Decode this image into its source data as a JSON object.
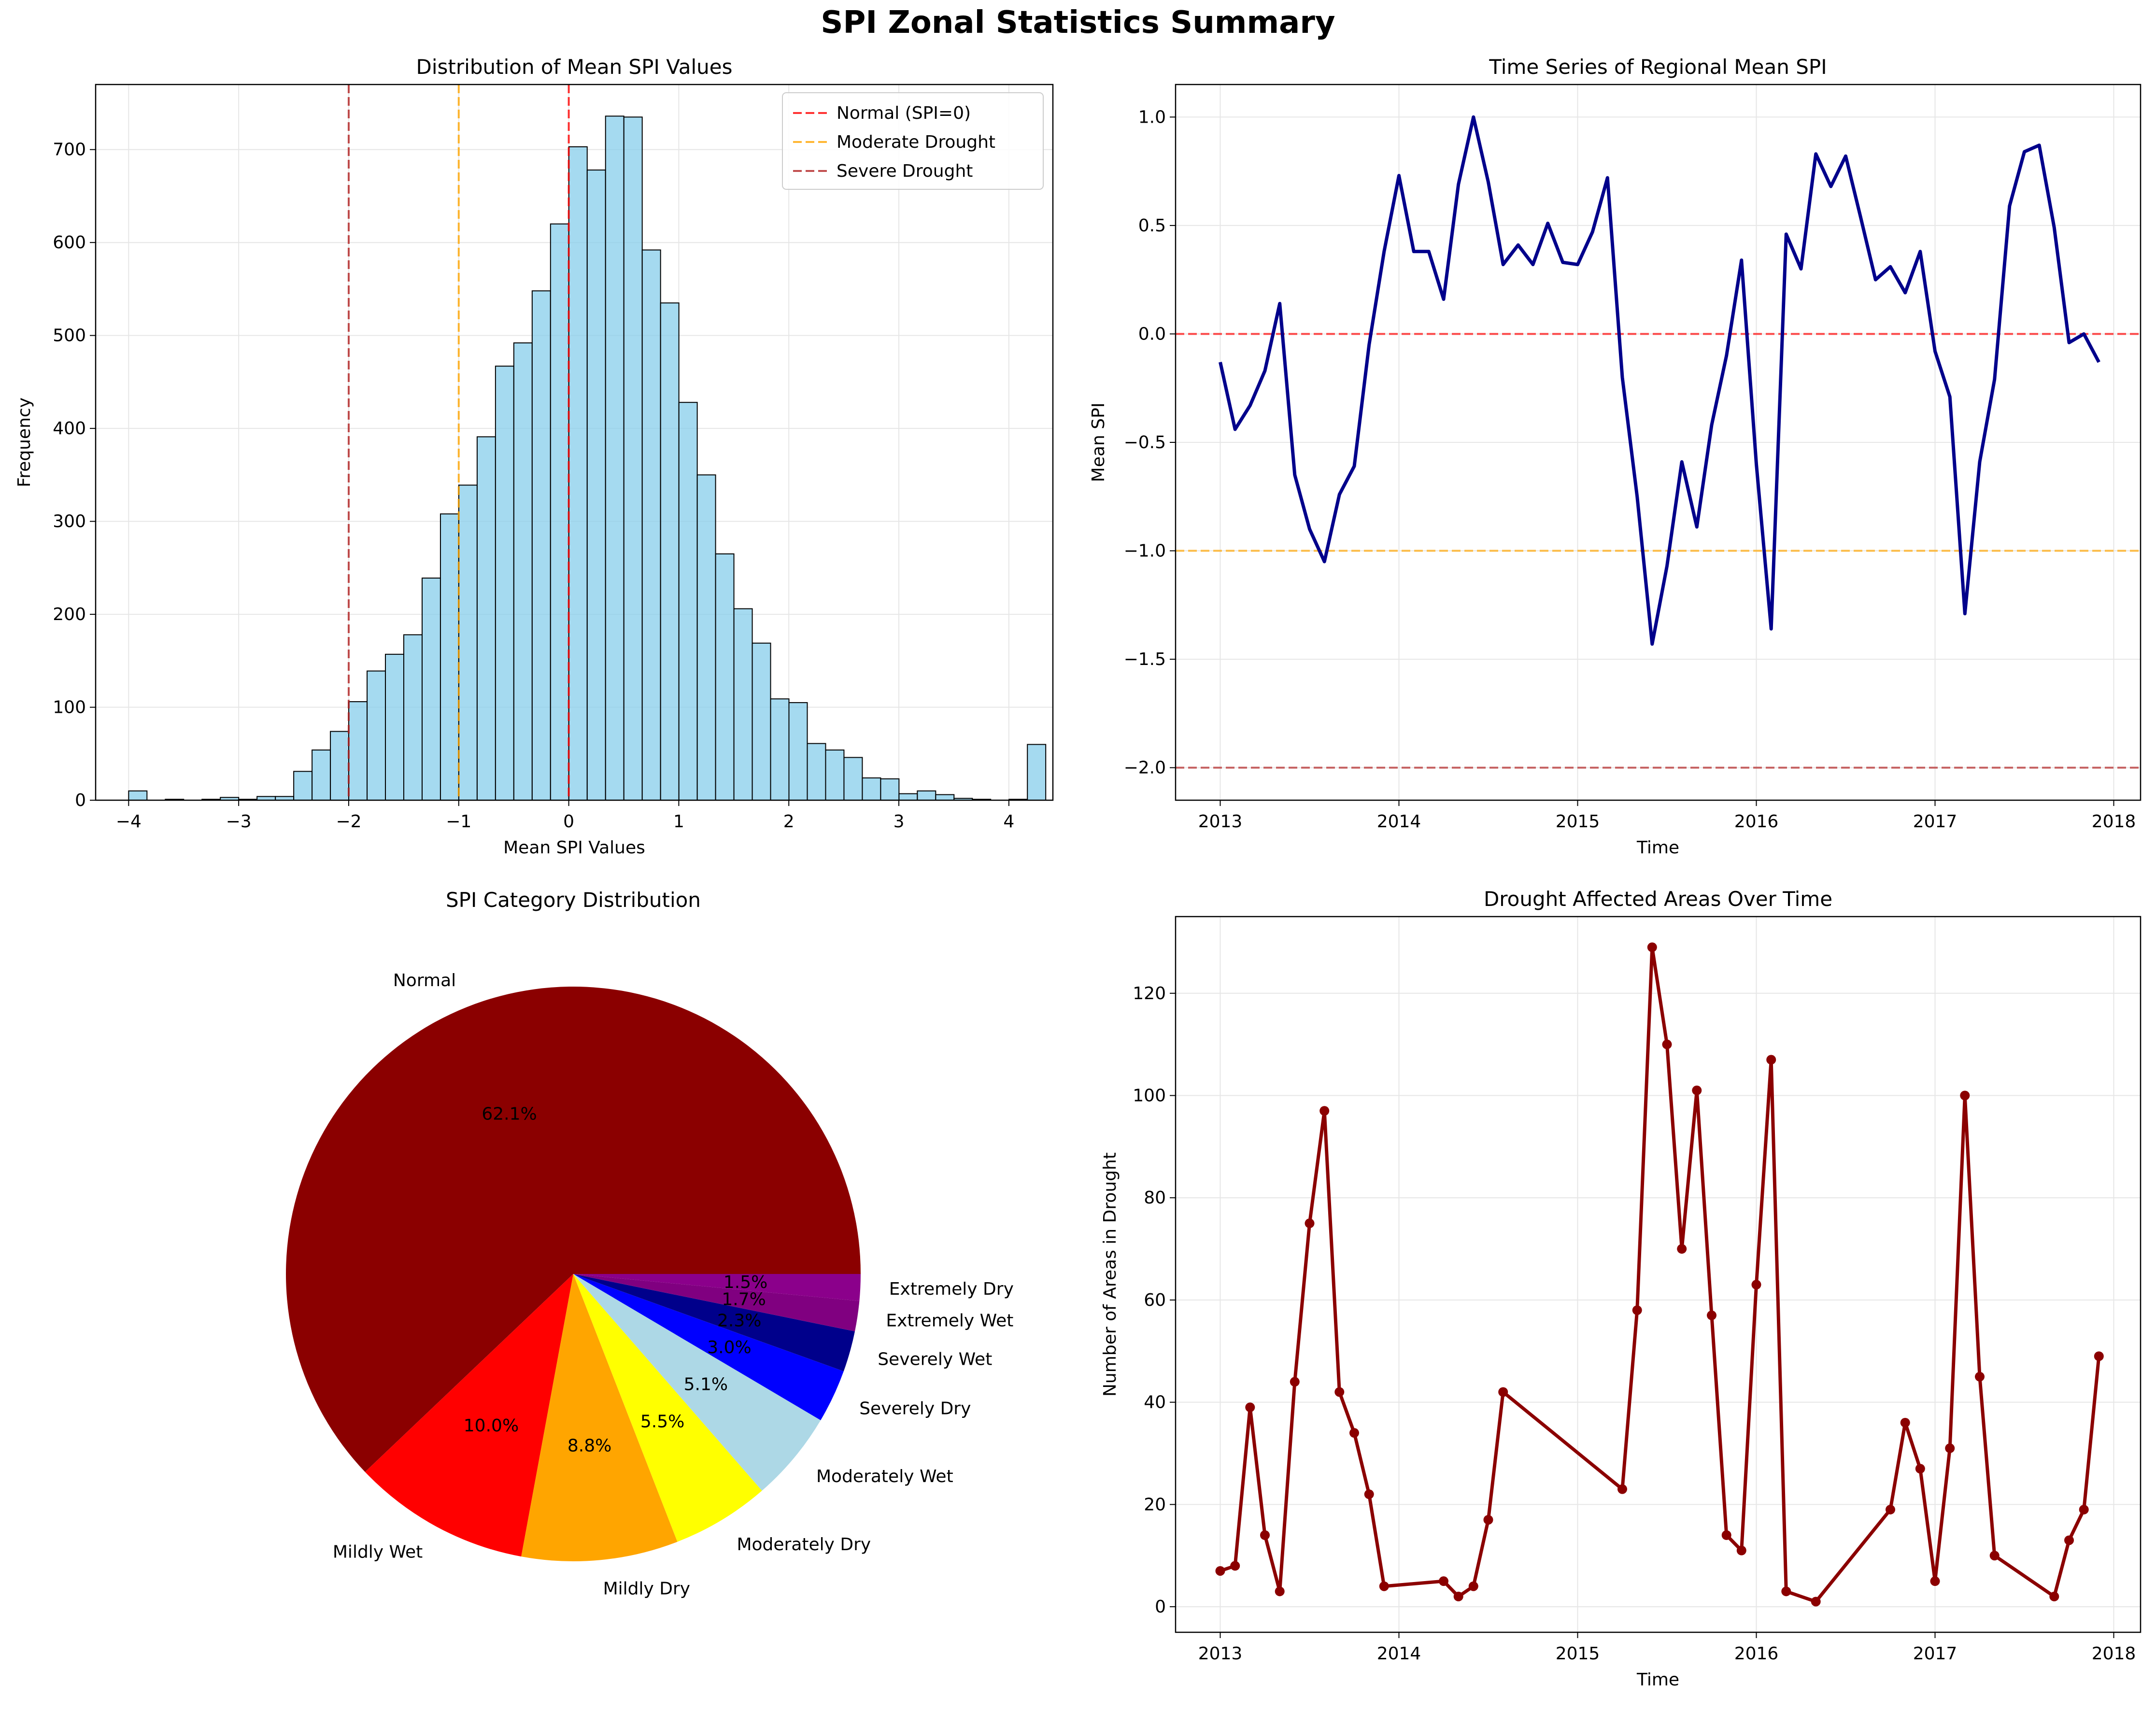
{
  "figure_title": "SPI Zonal Statistics Summary",
  "colors": {
    "hist_fill": "#87ceeb",
    "line_blue": "#00008b",
    "drought_line": "#8b0000",
    "normal": "#ff0000",
    "moderate": "#ffa500",
    "severe": "#b22222"
  },
  "chart_data": [
    {
      "type": "bar",
      "subtype": "histogram",
      "title": "Distribution of Mean SPI Values",
      "xlabel": "Mean SPI Values",
      "ylabel": "Frequency",
      "xlim": [
        -4.3,
        4.4
      ],
      "ylim": [
        0,
        770
      ],
      "xticks": [
        -4,
        -3,
        -2,
        -1,
        0,
        1,
        2,
        3,
        4
      ],
      "yticks": [
        0,
        100,
        200,
        300,
        400,
        500,
        600,
        700
      ],
      "bin_start": -4.0,
      "bin_width": 0.1667,
      "counts": [
        10,
        0,
        1,
        0,
        1,
        3,
        1,
        4,
        4,
        31,
        54,
        74,
        106,
        139,
        157,
        178,
        239,
        308,
        339,
        391,
        467,
        492,
        548,
        620,
        703,
        678,
        736,
        735,
        592,
        535,
        428,
        350,
        265,
        206,
        169,
        109,
        105,
        61,
        54,
        46,
        24,
        23,
        7,
        10,
        6,
        2,
        1,
        0,
        1,
        60
      ],
      "grid": true,
      "legend_position": "top-right",
      "reference_lines": [
        {
          "x": 0,
          "name": "Normal (SPI=0)",
          "color": "#ff0000"
        },
        {
          "x": -1,
          "name": "Moderate Drought",
          "color": "#ffa500"
        },
        {
          "x": -2,
          "name": "Severe Drought",
          "color": "#b22222"
        }
      ]
    },
    {
      "type": "line",
      "title": "Time Series of Regional Mean SPI",
      "xlabel": "Time",
      "ylabel": "Mean SPI",
      "xlim": [
        2012.75,
        2018.15
      ],
      "ylim": [
        -2.15,
        1.15
      ],
      "xticks": [
        2013,
        2014,
        2015,
        2016,
        2017,
        2018
      ],
      "yticks": [
        -2.0,
        -1.5,
        -1.0,
        -0.5,
        0.0,
        0.5,
        1.0
      ],
      "grid": true,
      "reference_lines": [
        {
          "y": 0,
          "color": "#ff0000"
        },
        {
          "y": -1,
          "color": "#ffa500"
        },
        {
          "y": -2,
          "color": "#b22222"
        }
      ],
      "x": [
        2013.0,
        2013.083,
        2013.167,
        2013.25,
        2013.333,
        2013.417,
        2013.5,
        2013.583,
        2013.667,
        2013.75,
        2013.833,
        2013.917,
        2014.0,
        2014.083,
        2014.167,
        2014.25,
        2014.333,
        2014.417,
        2014.5,
        2014.583,
        2014.667,
        2014.75,
        2014.833,
        2014.917,
        2015.0,
        2015.083,
        2015.167,
        2015.25,
        2015.333,
        2015.417,
        2015.5,
        2015.583,
        2015.667,
        2015.75,
        2015.833,
        2015.917,
        2016.0,
        2016.083,
        2016.167,
        2016.25,
        2016.333,
        2016.417,
        2016.5,
        2016.583,
        2016.667,
        2016.75,
        2016.833,
        2016.917,
        2017.0,
        2017.083,
        2017.167,
        2017.25,
        2017.333,
        2017.417,
        2017.5,
        2017.583,
        2017.667,
        2017.75,
        2017.833,
        2017.917
      ],
      "values": [
        -0.13,
        -0.44,
        -0.33,
        -0.17,
        0.14,
        -0.65,
        -0.9,
        -1.05,
        -0.74,
        -0.61,
        -0.05,
        0.38,
        0.73,
        0.38,
        0.38,
        0.16,
        0.69,
        1.0,
        0.7,
        0.32,
        0.41,
        0.32,
        0.51,
        0.33,
        0.32,
        0.47,
        0.72,
        -0.2,
        -0.75,
        -1.43,
        -1.07,
        -0.59,
        -0.89,
        -0.42,
        -0.1,
        0.34,
        -0.6,
        -1.36,
        0.46,
        0.3,
        0.83,
        0.68,
        0.82,
        0.54,
        0.25,
        0.31,
        0.19,
        0.38,
        -0.08,
        -0.29,
        -1.29,
        -0.59,
        -0.21,
        0.59,
        0.84,
        0.87,
        0.49,
        -0.04,
        0.0,
        -0.13
      ]
    },
    {
      "type": "pie",
      "title": "SPI Category Distribution",
      "slices": [
        {
          "label": "Normal",
          "value": 62.1,
          "pct": "62.1%",
          "color": "#8b0000"
        },
        {
          "label": "Mildly Wet",
          "value": 10.0,
          "pct": "10.0%",
          "color": "#ff0000"
        },
        {
          "label": "Mildly Dry",
          "value": 8.8,
          "pct": "8.8%",
          "color": "#ffa500"
        },
        {
          "label": "Moderately Dry",
          "value": 5.5,
          "pct": "5.5%",
          "color": "#ffff00"
        },
        {
          "label": "Moderately Wet",
          "value": 5.1,
          "pct": "5.1%",
          "color": "#add8e6"
        },
        {
          "label": "Severely Dry",
          "value": 3.0,
          "pct": "3.0%",
          "color": "#0000ff"
        },
        {
          "label": "Severely Wet",
          "value": 2.3,
          "pct": "2.3%",
          "color": "#00008b"
        },
        {
          "label": "Extremely Wet",
          "value": 1.7,
          "pct": "1.7%",
          "color": "#800080"
        },
        {
          "label": "Extremely Dry",
          "value": 1.5,
          "pct": "1.5%",
          "color": "#8b008b"
        }
      ]
    },
    {
      "type": "line",
      "title": "Drought Affected Areas Over Time",
      "xlabel": "Time",
      "ylabel": "Number of Areas in Drought",
      "xlim": [
        2012.75,
        2018.15
      ],
      "ylim": [
        -5,
        135
      ],
      "xticks": [
        2013,
        2014,
        2015,
        2016,
        2017,
        2018
      ],
      "yticks": [
        0,
        20,
        40,
        60,
        80,
        100,
        120
      ],
      "grid": true,
      "markers": true,
      "x": [
        2013.0,
        2013.083,
        2013.167,
        2013.25,
        2013.333,
        2013.417,
        2013.5,
        2013.583,
        2013.667,
        2013.75,
        2013.833,
        2013.917,
        2014.25,
        2014.333,
        2014.417,
        2014.5,
        2014.583,
        2015.25,
        2015.333,
        2015.417,
        2015.5,
        2015.583,
        2015.667,
        2015.75,
        2015.833,
        2015.917,
        2016.0,
        2016.083,
        2016.167,
        2016.333,
        2016.75,
        2016.833,
        2016.917,
        2017.0,
        2017.083,
        2017.167,
        2017.25,
        2017.333,
        2017.667,
        2017.75,
        2017.833,
        2017.917
      ],
      "values": [
        7,
        8,
        39,
        14,
        3,
        44,
        75,
        97,
        42,
        34,
        22,
        4,
        5,
        2,
        4,
        17,
        42,
        23,
        58,
        129,
        110,
        70,
        101,
        57,
        14,
        11,
        63,
        107,
        3,
        1,
        19,
        36,
        27,
        5,
        31,
        100,
        45,
        10,
        2,
        13,
        19,
        49
      ]
    }
  ]
}
